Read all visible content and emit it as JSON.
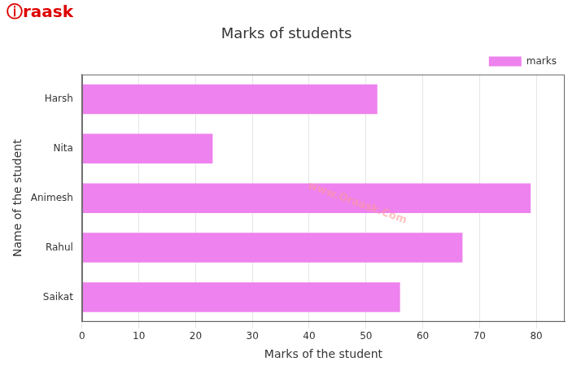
{
  "chart_data": {
    "type": "bar",
    "orientation": "horizontal",
    "title": "Marks of students",
    "xlabel": "Marks of the student",
    "ylabel": "Name of the student",
    "categories": [
      "Saikat",
      "Rahul",
      "Animesh",
      "Nita",
      "Harsh"
    ],
    "series": [
      {
        "name": "marks",
        "color": "#ee82ee",
        "values": [
          56,
          67,
          79,
          23,
          52
        ]
      }
    ],
    "xlim": [
      0,
      85
    ],
    "xticks": [
      0,
      10,
      20,
      30,
      40,
      50,
      60,
      70,
      80
    ],
    "grid": true,
    "legend": "upper right",
    "annotations": [
      {
        "text": "www.Oraask.Com",
        "color": "#ff9999"
      },
      {
        "text": "ⓘraask",
        "color": "#dd0000"
      }
    ]
  }
}
